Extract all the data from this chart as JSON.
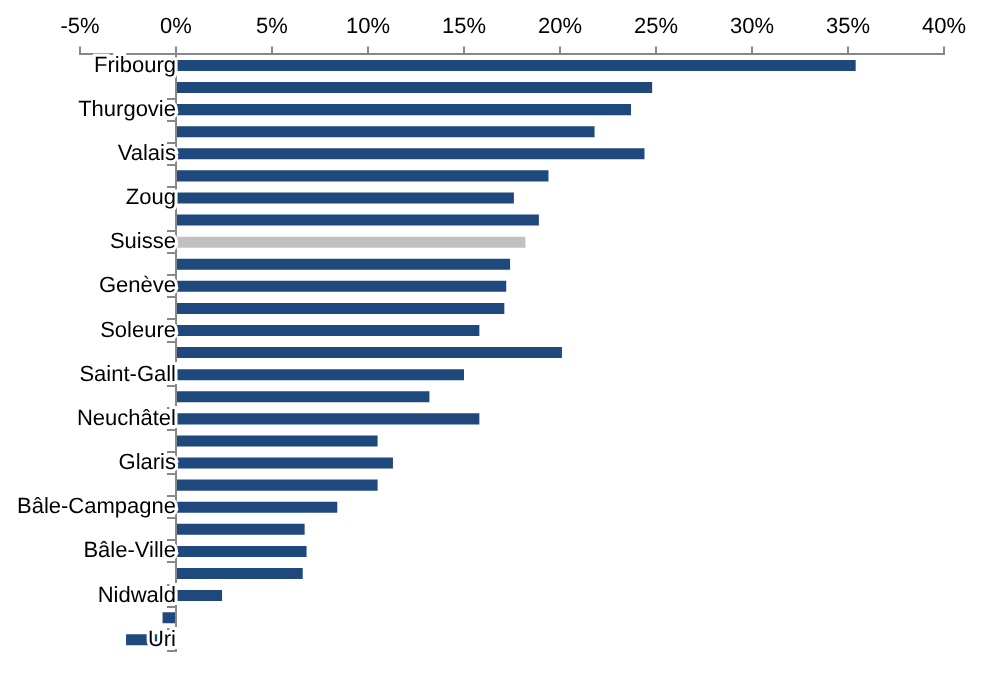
{
  "chart_data": {
    "type": "bar",
    "orientation": "horizontal",
    "categories": [
      "Fribourg",
      null,
      "Thurgovie",
      null,
      "Valais",
      null,
      "Zoug",
      null,
      "Suisse",
      null,
      "Genève",
      null,
      "Soleure",
      null,
      "Saint-Gall",
      null,
      "Neuchâtel",
      null,
      "Glaris",
      null,
      "Bâle-Campagne",
      null,
      "Bâle-Ville",
      null,
      "Nidwald",
      null,
      "Uri"
    ],
    "values": [
      35.4,
      24.8,
      23.7,
      21.8,
      24.4,
      19.4,
      17.6,
      18.9,
      18.2,
      17.4,
      17.2,
      17.1,
      15.8,
      20.1,
      15.0,
      13.2,
      15.8,
      10.5,
      11.3,
      10.5,
      8.4,
      6.7,
      6.8,
      6.6,
      2.4,
      -0.7,
      -2.6
    ],
    "colors": [
      "#1f497d",
      "#1f497d",
      "#1f497d",
      "#1f497d",
      "#1f497d",
      "#1f497d",
      "#1f497d",
      "#1f497d",
      "#c0c0c0",
      "#1f497d",
      "#1f497d",
      "#1f497d",
      "#1f497d",
      "#1f497d",
      "#1f497d",
      "#1f497d",
      "#1f497d",
      "#1f497d",
      "#1f497d",
      "#1f497d",
      "#1f497d",
      "#1f497d",
      "#1f497d",
      "#1f497d",
      "#1f497d",
      "#1f497d",
      "#1f497d"
    ],
    "xlim": [
      -5,
      40
    ],
    "xticks": [
      {
        "value": -5,
        "label": "-5%"
      },
      {
        "value": 0,
        "label": "0%"
      },
      {
        "value": 5,
        "label": "5%"
      },
      {
        "value": 10,
        "label": "10%"
      },
      {
        "value": 15,
        "label": "15%"
      },
      {
        "value": 20,
        "label": "20%"
      },
      {
        "value": 25,
        "label": "25%"
      },
      {
        "value": 30,
        "label": "30%"
      },
      {
        "value": 35,
        "label": "35%"
      },
      {
        "value": 40,
        "label": "40%"
      }
    ],
    "grid": false,
    "legend": false
  }
}
